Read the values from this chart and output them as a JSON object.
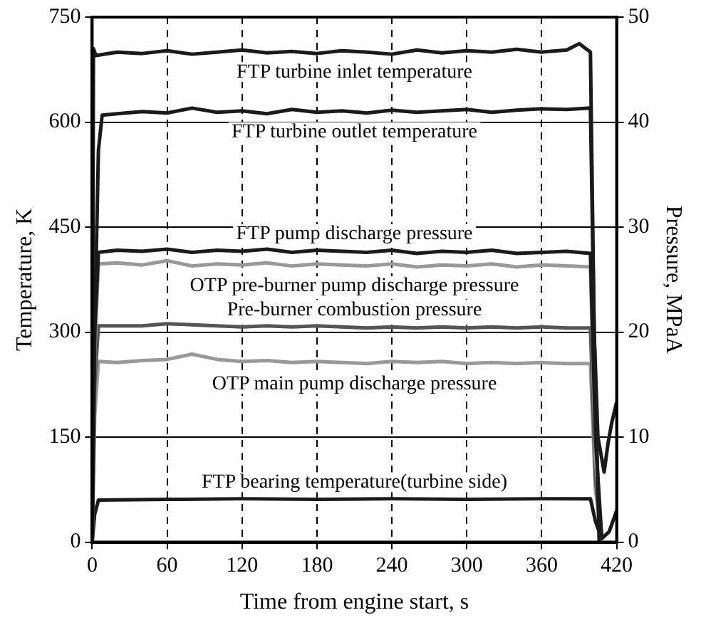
{
  "chart_data": {
    "type": "line",
    "xlabel": "Time from engine start, s",
    "ylabel": "Temperature, K",
    "y2label": "Pressure, MPaA",
    "xlim": [
      0,
      420
    ],
    "xticks": [
      0,
      60,
      120,
      180,
      240,
      300,
      360,
      420
    ],
    "ylim": [
      0,
      750
    ],
    "yticks": [
      0,
      150,
      300,
      450,
      600,
      750
    ],
    "y2lim": [
      0,
      50
    ],
    "y2ticks": [
      0,
      10,
      20,
      30,
      40,
      50
    ],
    "grid": true,
    "legend": false,
    "marker": "none",
    "line_style": "solid",
    "series": [
      {
        "name": "FTP turbine inlet temperature",
        "color": "#1a1a1a",
        "x": [
          0,
          1,
          3,
          20,
          40,
          60,
          80,
          100,
          120,
          140,
          160,
          180,
          200,
          220,
          240,
          260,
          280,
          300,
          320,
          340,
          360,
          380,
          390,
          399,
          402,
          405,
          410,
          413,
          416,
          420
        ],
        "values": [
          0,
          705,
          695,
          700,
          698,
          702,
          697,
          700,
          703,
          699,
          701,
          698,
          702,
          700,
          697,
          703,
          699,
          702,
          700,
          704,
          700,
          703,
          712,
          700,
          300,
          150,
          100,
          140,
          170,
          200
        ]
      },
      {
        "name": "FTP turbine outlet temperature",
        "color": "#1a1a1a",
        "x": [
          0,
          2,
          5,
          8,
          20,
          40,
          60,
          80,
          100,
          120,
          140,
          160,
          180,
          200,
          220,
          240,
          260,
          280,
          300,
          320,
          340,
          360,
          380,
          399,
          402,
          406
        ],
        "values": [
          0,
          300,
          560,
          610,
          612,
          615,
          613,
          620,
          614,
          616,
          612,
          618,
          614,
          616,
          613,
          617,
          614,
          616,
          618,
          614,
          617,
          619,
          618,
          620,
          300,
          0
        ]
      },
      {
        "name": "FTP pump discharge pressure",
        "color": "#1a1a1a",
        "axis": "y2",
        "x": [
          0,
          2,
          5,
          20,
          40,
          60,
          80,
          100,
          120,
          140,
          160,
          180,
          200,
          220,
          240,
          260,
          280,
          300,
          320,
          340,
          360,
          380,
          399,
          403,
          408
        ],
        "values": [
          0,
          20,
          27.6,
          27.8,
          27.7,
          27.9,
          27.6,
          27.8,
          27.7,
          27.9,
          27.6,
          27.8,
          27.7,
          27.6,
          27.8,
          27.5,
          27.7,
          27.6,
          27.8,
          27.5,
          27.6,
          27.7,
          27.5,
          10,
          0.5
        ]
      },
      {
        "name": "OTP pre-burner pump discharge pressure",
        "color": "#999999",
        "axis": "y2",
        "x": [
          0,
          2,
          5,
          20,
          40,
          60,
          80,
          100,
          120,
          140,
          160,
          180,
          200,
          220,
          240,
          260,
          280,
          300,
          320,
          340,
          360,
          380,
          399,
          403,
          408
        ],
        "values": [
          0,
          18,
          26.5,
          26.6,
          26.4,
          26.8,
          26.3,
          26.5,
          26.4,
          26.6,
          26.3,
          26.5,
          26.4,
          26.3,
          26.5,
          26.2,
          26.4,
          26.3,
          26.5,
          26.2,
          26.4,
          26.3,
          26.2,
          8,
          0.5
        ]
      },
      {
        "name": "Pre-burner combustion pressure",
        "color": "#555555",
        "axis": "y2",
        "x": [
          0,
          2,
          5,
          20,
          40,
          60,
          80,
          100,
          120,
          140,
          160,
          180,
          200,
          220,
          240,
          260,
          280,
          300,
          320,
          340,
          360,
          380,
          399,
          403,
          408
        ],
        "values": [
          0,
          15,
          20.6,
          20.6,
          20.6,
          20.8,
          20.7,
          20.6,
          20.5,
          20.6,
          20.5,
          20.6,
          20.5,
          20.4,
          20.5,
          20.4,
          20.5,
          20.4,
          20.5,
          20.4,
          20.5,
          20.4,
          20.4,
          6,
          0.5
        ]
      },
      {
        "name": "OTP main pump discharge pressure",
        "color": "#999999",
        "axis": "y2",
        "x": [
          0,
          2,
          5,
          20,
          40,
          60,
          80,
          100,
          120,
          140,
          160,
          180,
          200,
          220,
          240,
          260,
          280,
          300,
          320,
          340,
          360,
          380,
          399,
          403,
          408
        ],
        "values": [
          0,
          12,
          17.2,
          17.1,
          17.3,
          17.4,
          17.9,
          17.4,
          17.2,
          17.3,
          17.1,
          17.2,
          17.1,
          17.0,
          17.2,
          17.1,
          17.2,
          17.0,
          17.1,
          17.0,
          17.1,
          17.0,
          17.0,
          5,
          0.5
        ]
      },
      {
        "name": "FTP bearing temperature(turbine side)",
        "color": "#1a1a1a",
        "x": [
          0,
          2,
          5,
          60,
          120,
          180,
          240,
          300,
          360,
          399,
          403,
          408,
          414,
          420
        ],
        "values": [
          0,
          40,
          60,
          61,
          62,
          61,
          62,
          61,
          62,
          62,
          30,
          5,
          15,
          45
        ]
      }
    ]
  }
}
